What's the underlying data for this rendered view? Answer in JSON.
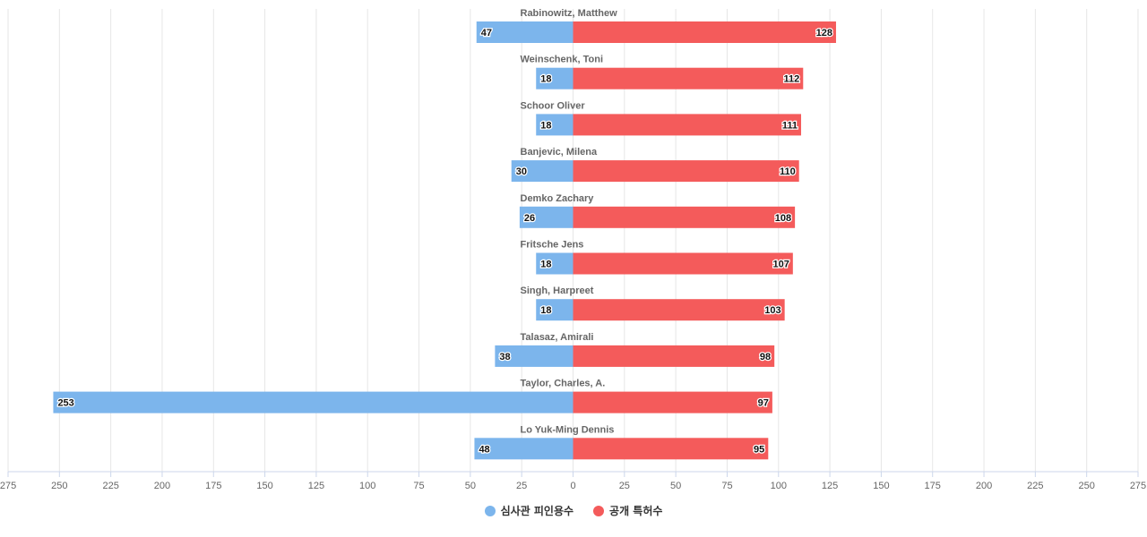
{
  "chart_data": {
    "type": "bar",
    "orientation": "horizontal-diverging",
    "categories": [
      "Rabinowitz, Matthew",
      "Weinschenk, Toni",
      "Schoor Oliver",
      "Banjevic, Milena",
      "Demko Zachary",
      "Fritsche Jens",
      "Singh, Harpreet",
      "Talasaz, Amirali",
      "Taylor, Charles, A.",
      "Lo Yuk-Ming Dennis"
    ],
    "series": [
      {
        "name": "심사관 피인용수",
        "color": "#7cb5ec",
        "direction": "left",
        "values": [
          47,
          18,
          18,
          30,
          26,
          18,
          18,
          38,
          253,
          48
        ]
      },
      {
        "name": "공개 특허수",
        "color": "#f45b5b",
        "direction": "right",
        "values": [
          128,
          112,
          111,
          110,
          108,
          107,
          103,
          98,
          97,
          95
        ]
      }
    ],
    "xlim": [
      -275,
      275
    ],
    "xticks": [
      "275",
      "250",
      "225",
      "200",
      "175",
      "150",
      "125",
      "100",
      "75",
      "50",
      "25",
      "0",
      "25",
      "50",
      "75",
      "100",
      "125",
      "150",
      "175",
      "200",
      "225",
      "250",
      "275"
    ],
    "grid": true,
    "legend_position": "bottom"
  }
}
